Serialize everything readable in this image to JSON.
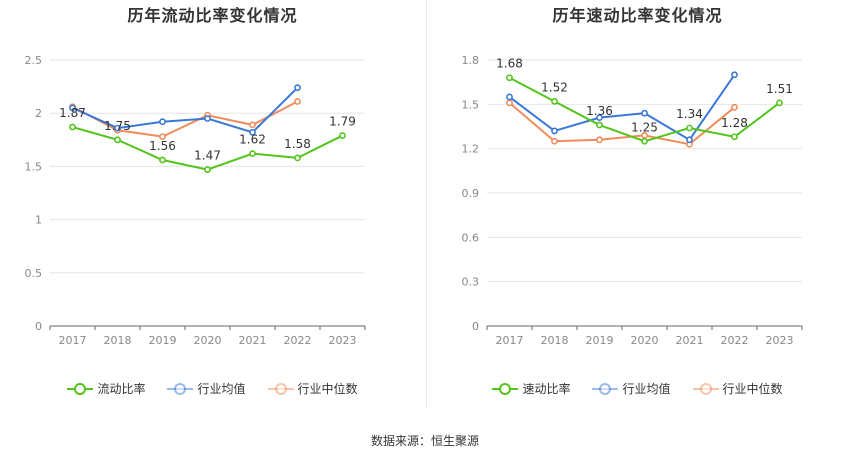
{
  "source_text": "数据来源：恒生聚源",
  "chart_data": [
    {
      "type": "line",
      "title": "历年流动比率变化情况",
      "categories": [
        "2017",
        "2018",
        "2019",
        "2020",
        "2021",
        "2022",
        "2023"
      ],
      "ylim": [
        0,
        2.5
      ],
      "yticks": [
        "0",
        "0.5",
        "1",
        "1.5",
        "2",
        "2.5"
      ],
      "ytick_values": [
        0,
        0.5,
        1,
        1.5,
        2,
        2.5
      ],
      "grid": true,
      "legend_position": "bottom",
      "series": [
        {
          "name": "流动比率",
          "color": "#52c41a",
          "values": [
            1.87,
            1.75,
            1.56,
            1.47,
            1.62,
            1.58,
            1.79
          ],
          "labels": [
            "1.87",
            "1.75",
            "1.56",
            "1.47",
            "1.62",
            "1.58",
            "1.79"
          ]
        },
        {
          "name": "行业均值",
          "color": "#3a78d8",
          "values": [
            2.05,
            1.86,
            1.92,
            1.95,
            1.82,
            2.24,
            null
          ]
        },
        {
          "name": "行业中位数",
          "color": "#f08c5a",
          "values": [
            2.06,
            1.84,
            1.78,
            1.98,
            1.89,
            2.11,
            null
          ]
        }
      ]
    },
    {
      "type": "line",
      "title": "历年速动比率变化情况",
      "categories": [
        "2017",
        "2018",
        "2019",
        "2020",
        "2021",
        "2022",
        "2023"
      ],
      "ylim": [
        0,
        1.8
      ],
      "yticks": [
        "0",
        "0.3",
        "0.6",
        "0.9",
        "1.2",
        "1.5",
        "1.8"
      ],
      "ytick_values": [
        0,
        0.3,
        0.6,
        0.9,
        1.2,
        1.5,
        1.8
      ],
      "grid": true,
      "legend_position": "bottom",
      "series": [
        {
          "name": "速动比率",
          "color": "#52c41a",
          "values": [
            1.68,
            1.52,
            1.36,
            1.25,
            1.34,
            1.28,
            1.51
          ],
          "labels": [
            "1.68",
            "1.52",
            "1.36",
            "1.25",
            "1.34",
            "1.28",
            "1.51"
          ]
        },
        {
          "name": "行业均值",
          "color": "#3a78d8",
          "values": [
            1.55,
            1.32,
            1.41,
            1.44,
            1.26,
            1.7,
            null
          ]
        },
        {
          "name": "行业中位数",
          "color": "#f08c5a",
          "values": [
            1.51,
            1.25,
            1.26,
            1.29,
            1.23,
            1.48,
            null
          ]
        }
      ]
    }
  ]
}
